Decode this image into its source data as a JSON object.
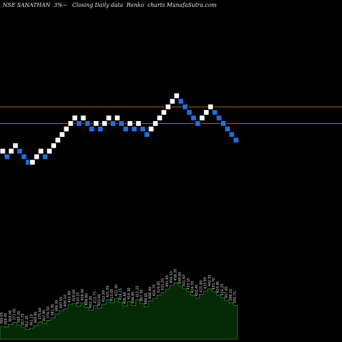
{
  "chart_title": "NSE SANATHAN  3%~   Closing Daily data  Renko  charts MunafaSutra.com",
  "colors": {
    "background": "#000000",
    "up_brick": "#ffffff",
    "down_brick": "#1f6fe0",
    "brick_border": "#000000",
    "resistance_line": "#c0651a",
    "volume_fill": "#062906",
    "volume_outline": "#2f8a2f",
    "label": "#d8d8d8"
  },
  "chart_data": {
    "type": "renko",
    "title": "NSE SANATHAN  3%~   Closing Daily data  Renko  charts MunafaSutra.com",
    "brick_size_label": "3%",
    "reference_lines": [
      {
        "name": "upper",
        "value": 25
      },
      {
        "name": "lower",
        "value": 22
      }
    ],
    "bricks": [
      {
        "dir": "up",
        "level": 17
      },
      {
        "dir": "down",
        "level": 16
      },
      {
        "dir": "up",
        "level": 17
      },
      {
        "dir": "up",
        "level": 18
      },
      {
        "dir": "down",
        "level": 17
      },
      {
        "dir": "down",
        "level": 16
      },
      {
        "dir": "down",
        "level": 15
      },
      {
        "dir": "up",
        "level": 15
      },
      {
        "dir": "up",
        "level": 16
      },
      {
        "dir": "up",
        "level": 17
      },
      {
        "dir": "down",
        "level": 16
      },
      {
        "dir": "up",
        "level": 17
      },
      {
        "dir": "up",
        "level": 18
      },
      {
        "dir": "up",
        "level": 19
      },
      {
        "dir": "up",
        "level": 20
      },
      {
        "dir": "up",
        "level": 21
      },
      {
        "dir": "up",
        "level": 22
      },
      {
        "dir": "up",
        "level": 23
      },
      {
        "dir": "down",
        "level": 22
      },
      {
        "dir": "up",
        "level": 23
      },
      {
        "dir": "down",
        "level": 22
      },
      {
        "dir": "down",
        "level": 21
      },
      {
        "dir": "up",
        "level": 22
      },
      {
        "dir": "down",
        "level": 21
      },
      {
        "dir": "up",
        "level": 22
      },
      {
        "dir": "up",
        "level": 23
      },
      {
        "dir": "down",
        "level": 22
      },
      {
        "dir": "up",
        "level": 23
      },
      {
        "dir": "down",
        "level": 22
      },
      {
        "dir": "down",
        "level": 21
      },
      {
        "dir": "up",
        "level": 22
      },
      {
        "dir": "down",
        "level": 21
      },
      {
        "dir": "up",
        "level": 22
      },
      {
        "dir": "down",
        "level": 21
      },
      {
        "dir": "down",
        "level": 20
      },
      {
        "dir": "up",
        "level": 21
      },
      {
        "dir": "up",
        "level": 22
      },
      {
        "dir": "up",
        "level": 23
      },
      {
        "dir": "up",
        "level": 24
      },
      {
        "dir": "up",
        "level": 25
      },
      {
        "dir": "up",
        "level": 26
      },
      {
        "dir": "up",
        "level": 27
      },
      {
        "dir": "down",
        "level": 26
      },
      {
        "dir": "down",
        "level": 25
      },
      {
        "dir": "down",
        "level": 24
      },
      {
        "dir": "down",
        "level": 23
      },
      {
        "dir": "down",
        "level": 22
      },
      {
        "dir": "up",
        "level": 23
      },
      {
        "dir": "up",
        "level": 24
      },
      {
        "dir": "up",
        "level": 25
      },
      {
        "dir": "down",
        "level": 24
      },
      {
        "dir": "down",
        "level": 23
      },
      {
        "dir": "down",
        "level": 22
      },
      {
        "dir": "down",
        "level": 21
      },
      {
        "dir": "down",
        "level": 20
      },
      {
        "dir": "down",
        "level": 19
      }
    ],
    "volume_levels": [
      0.2,
      0.19,
      0.23,
      0.26,
      0.22,
      0.18,
      0.15,
      0.17,
      0.21,
      0.27,
      0.24,
      0.29,
      0.33,
      0.39,
      0.44,
      0.47,
      0.53,
      0.55,
      0.51,
      0.56,
      0.49,
      0.45,
      0.52,
      0.48,
      0.54,
      0.61,
      0.56,
      0.63,
      0.57,
      0.51,
      0.58,
      0.52,
      0.61,
      0.55,
      0.5,
      0.59,
      0.63,
      0.68,
      0.72,
      0.77,
      0.83,
      0.87,
      0.82,
      0.78,
      0.73,
      0.68,
      0.63,
      0.69,
      0.74,
      0.78,
      0.73,
      0.68,
      0.64,
      0.6,
      0.56,
      0.52
    ],
    "price_labels": [
      "366.05",
      "358.45",
      "369.08",
      "373.05",
      "365.35",
      "357.75",
      "352.35",
      "361.10",
      "369.80",
      "375.60",
      "367.95",
      "376.50",
      "381.95",
      "389.30",
      "397.55",
      "405.10",
      "412.85",
      "418.60",
      "410.25",
      "419.40",
      "409.80",
      "402.20",
      "411.75",
      "403.60",
      "412.90",
      "421.50",
      "413.05",
      "422.40",
      "414.25",
      "405.60",
      "414.30",
      "406.85",
      "415.25",
      "407.30",
      "399.65",
      "408.40",
      "416.75",
      "424.85",
      "433.20",
      "441.95",
      "450.10",
      "458.35",
      "449.80",
      "441.60",
      "433.15",
      "424.70",
      "416.45",
      "425.80",
      "433.90",
      "442.55",
      "433.70",
      "424.95",
      "416.20",
      "407.85",
      "399.10",
      "391.75"
    ]
  }
}
